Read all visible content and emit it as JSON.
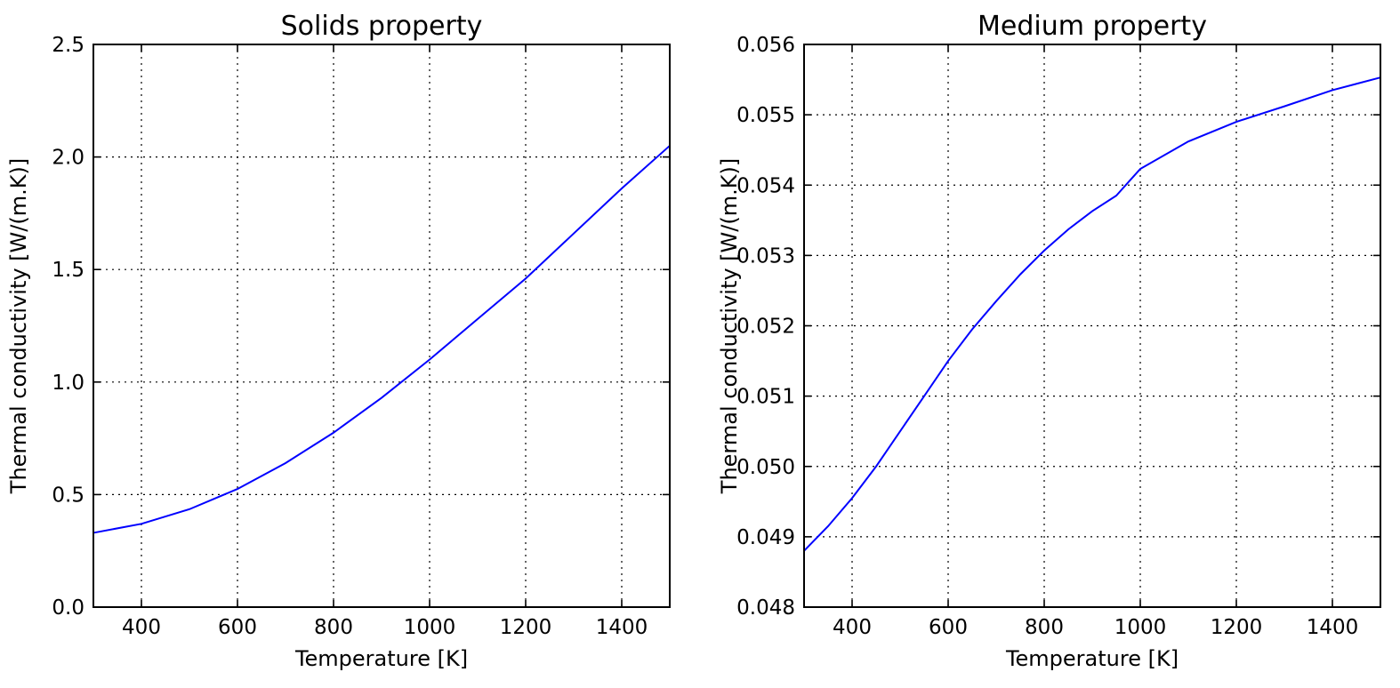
{
  "chart_data": [
    {
      "type": "line",
      "title": "Solids property",
      "xlabel": "Temperature [K]",
      "ylabel": "Thermal conductivity [W/(m.K)]",
      "xlim": [
        300,
        1500
      ],
      "ylim": [
        0.0,
        2.5
      ],
      "xticks": [
        400,
        600,
        800,
        1000,
        1200,
        1400
      ],
      "xtick_labels": [
        "400",
        "600",
        "800",
        "1000",
        "1200",
        "1400"
      ],
      "yticks": [
        0.0,
        0.5,
        1.0,
        1.5,
        2.0,
        2.5
      ],
      "ytick_labels": [
        "0.0",
        "0.5",
        "1.0",
        "1.5",
        "2.0",
        "2.5"
      ],
      "grid": true,
      "series": [
        {
          "color": "#0000ff",
          "x": [
            300,
            400,
            500,
            600,
            700,
            800,
            900,
            1000,
            1100,
            1200,
            1300,
            1400,
            1500
          ],
          "y": [
            0.33,
            0.37,
            0.435,
            0.525,
            0.64,
            0.775,
            0.93,
            1.1,
            1.28,
            1.46,
            1.66,
            1.86,
            2.05
          ]
        }
      ]
    },
    {
      "type": "line",
      "title": "Medium property",
      "xlabel": "Temperature [K]",
      "ylabel": "Thermal conductivity [W/(m.K)]",
      "xlim": [
        300,
        1500
      ],
      "ylim": [
        0.048,
        0.056
      ],
      "xticks": [
        400,
        600,
        800,
        1000,
        1200,
        1400
      ],
      "xtick_labels": [
        "400",
        "600",
        "800",
        "1000",
        "1200",
        "1400"
      ],
      "yticks": [
        0.048,
        0.049,
        0.05,
        0.051,
        0.052,
        0.053,
        0.054,
        0.055,
        0.056
      ],
      "ytick_labels": [
        "0.048",
        "0.049",
        "0.050",
        "0.051",
        "0.052",
        "0.053",
        "0.054",
        "0.055",
        "0.056"
      ],
      "grid": true,
      "series": [
        {
          "color": "#0000ff",
          "x": [
            300,
            350,
            400,
            450,
            500,
            550,
            600,
            650,
            700,
            750,
            800,
            850,
            900,
            950,
            1000,
            1100,
            1200,
            1300,
            1400,
            1500
          ],
          "y": [
            0.0488,
            0.04915,
            0.04955,
            0.05,
            0.0505,
            0.051,
            0.0515,
            0.05195,
            0.05235,
            0.05273,
            0.05307,
            0.05337,
            0.05363,
            0.05385,
            0.05423,
            0.05462,
            0.0549,
            0.05512,
            0.05535,
            0.05553
          ]
        }
      ]
    }
  ]
}
